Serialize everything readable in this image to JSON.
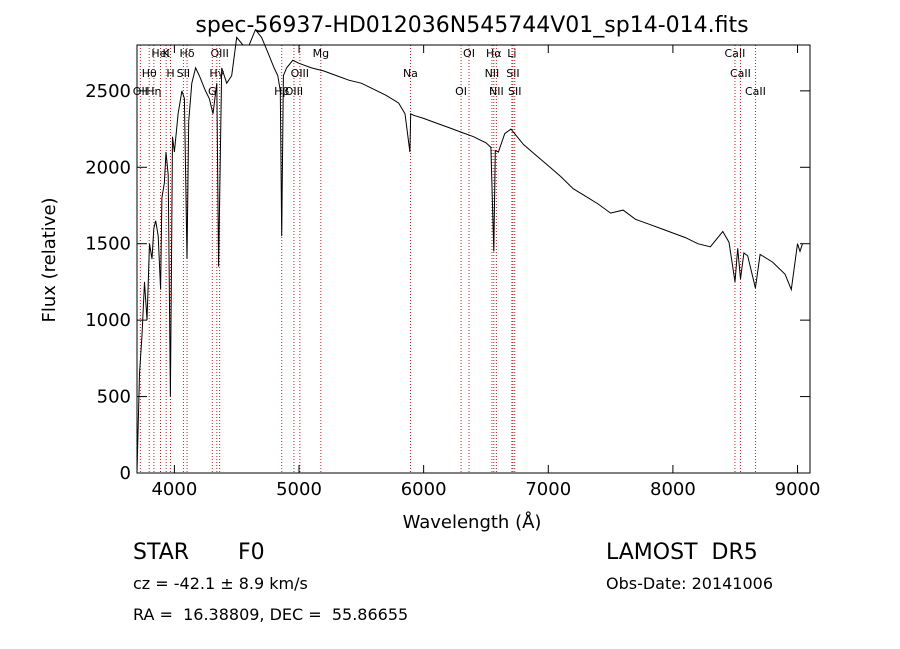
{
  "chart_data": {
    "type": "line",
    "title": "spec-56937-HD012036N545744V01_sp14-014.fits",
    "xlabel": "Wavelength (Å)",
    "ylabel": "Flux (relative)",
    "xlim": [
      3700,
      9100
    ],
    "ylim": [
      0,
      2800
    ],
    "xticks": [
      4000,
      5000,
      6000,
      7000,
      8000,
      9000
    ],
    "yticks": [
      0,
      500,
      1000,
      1500,
      2000,
      2500
    ],
    "grid": false,
    "line_color": "#000000",
    "marker_color": "#b22222",
    "series": [
      {
        "x": [
          3700,
          3720,
          3740,
          3760,
          3780,
          3800,
          3820,
          3835,
          3850,
          3870,
          3889,
          3900,
          3920,
          3933,
          3950,
          3968,
          3985,
          4000,
          4030,
          4060,
          4080,
          4101,
          4115,
          4140,
          4170,
          4200,
          4250,
          4280,
          4310,
          4340,
          4355,
          4380,
          4420,
          4460,
          4500,
          4550,
          4600,
          4650,
          4700,
          4750,
          4800,
          4830,
          4850,
          4861,
          4875,
          4900,
          4950,
          5000,
          5100,
          5200,
          5300,
          5400,
          5500,
          5600,
          5700,
          5800,
          5850,
          5890,
          5896,
          5920,
          6000,
          6100,
          6200,
          6300,
          6400,
          6450,
          6500,
          6540,
          6563,
          6575,
          6600,
          6650,
          6700,
          6800,
          6900,
          7000,
          7100,
          7200,
          7300,
          7400,
          7500,
          7600,
          7700,
          7800,
          7900,
          8000,
          8100,
          8200,
          8300,
          8400,
          8450,
          8498,
          8520,
          8542,
          8570,
          8600,
          8662,
          8700,
          8800,
          8900,
          8950,
          9000,
          9020,
          9040
        ],
        "y": [
          0,
          650,
          900,
          1250,
          1000,
          1500,
          1400,
          1600,
          1650,
          1550,
          1200,
          1800,
          1900,
          2100,
          1950,
          500,
          2200,
          2100,
          2350,
          2500,
          2450,
          1400,
          2300,
          2550,
          2650,
          2600,
          2500,
          2450,
          2350,
          2550,
          1350,
          2650,
          2550,
          2600,
          2850,
          2800,
          2800,
          2900,
          2850,
          2750,
          2650,
          2600,
          2500,
          1550,
          2600,
          2650,
          2700,
          2680,
          2650,
          2630,
          2600,
          2570,
          2550,
          2510,
          2470,
          2420,
          2350,
          2100,
          2350,
          2340,
          2320,
          2290,
          2260,
          2230,
          2200,
          2180,
          2160,
          2130,
          1450,
          2110,
          2100,
          2220,
          2250,
          2150,
          2080,
          2010,
          1940,
          1860,
          1810,
          1760,
          1700,
          1720,
          1660,
          1630,
          1600,
          1570,
          1540,
          1500,
          1480,
          1580,
          1510,
          1250,
          1470,
          1270,
          1440,
          1420,
          1210,
          1430,
          1380,
          1300,
          1200,
          1500,
          1450,
          1500
        ]
      }
    ],
    "lines": [
      {
        "name": "Hδ",
        "wavelength": 4101.7,
        "label_pos": "top"
      },
      {
        "name": "Hγ",
        "wavelength": 4340.5,
        "label_pos": "top"
      },
      {
        "name": "Hβ",
        "wavelength": 4861.3,
        "label_pos": "top"
      },
      {
        "name": "Hα",
        "wavelength": 6562.8,
        "label_pos": "top"
      },
      {
        "name": "Hθ",
        "wavelength": 3797.9,
        "label_pos": "top"
      },
      {
        "name": "Hη",
        "wavelength": 3835.4,
        "label_pos": "top"
      },
      {
        "name": "K",
        "wavelength": 3933.7,
        "label_pos": "top"
      },
      {
        "name": "H",
        "wavelength": 3968.5,
        "label_pos": "top"
      },
      {
        "name": "OII",
        "wavelength": 3727.0,
        "label_pos": "top"
      },
      {
        "name": "OIII",
        "wavelength": 4363.2,
        "label_pos": "top"
      },
      {
        "name": "OIII",
        "wavelength": 5006.8,
        "label_pos": "top"
      },
      {
        "name": "OIII",
        "wavelength": 4958.9,
        "label_pos": "top"
      },
      {
        "name": "HeI",
        "wavelength": 3888.6,
        "label_pos": "top"
      },
      {
        "name": "SII",
        "wavelength": 4072.3,
        "label_pos": "top"
      },
      {
        "name": "G",
        "wavelength": 4304.4,
        "label_pos": "top"
      },
      {
        "name": "Mg",
        "wavelength": 5175.0,
        "label_pos": "top"
      },
      {
        "name": "Na",
        "wavelength": 5894.0,
        "label_pos": "top"
      },
      {
        "name": "OI",
        "wavelength": 6300.3,
        "label_pos": "top"
      },
      {
        "name": "OI",
        "wavelength": 6363.8,
        "label_pos": "top"
      },
      {
        "name": "NII",
        "wavelength": 6548.0,
        "label_pos": "top"
      },
      {
        "name": "NII",
        "wavelength": 6583.5,
        "label_pos": "top"
      },
      {
        "name": "Li",
        "wavelength": 6707.8,
        "label_pos": "top"
      },
      {
        "name": "SII",
        "wavelength": 6716.4,
        "label_pos": "top"
      },
      {
        "name": "SII",
        "wavelength": 6730.8,
        "label_pos": "top"
      },
      {
        "name": "CaII",
        "wavelength": 8498.0,
        "label_pos": "top"
      },
      {
        "name": "CaII",
        "wavelength": 8542.1,
        "label_pos": "top"
      },
      {
        "name": "CaII",
        "wavelength": 8662.1,
        "label_pos": "top"
      }
    ]
  },
  "info": {
    "object_type": "STAR",
    "subclass": "F0",
    "survey": "LAMOST  DR5",
    "cz": "cz = -42.1 ± 8.9 km/s",
    "obs_date": "Obs-Date: 20141006",
    "coords": "RA =  16.38809, DEC =  55.86655"
  }
}
